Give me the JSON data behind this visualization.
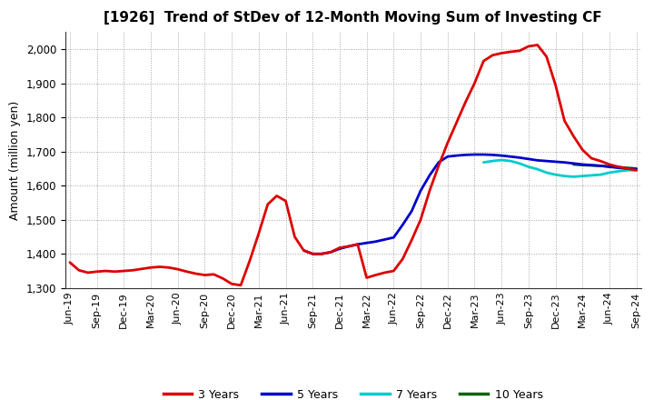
{
  "title": "[1926]  Trend of StDev of 12-Month Moving Sum of Investing CF",
  "ylabel": "Amount (million yen)",
  "ylim": [
    1300,
    2050
  ],
  "yticks": [
    1300,
    1400,
    1500,
    1600,
    1700,
    1800,
    1900,
    2000
  ],
  "background_color": "#ffffff",
  "plot_bg_color": "#ffffff",
  "grid_color": "#999999",
  "series": {
    "3 Years": {
      "color": "#dd0000",
      "x": [
        0,
        1,
        2,
        3,
        4,
        5,
        6,
        7,
        8,
        9,
        10,
        11,
        12,
        13,
        14,
        15,
        16,
        17,
        18,
        19,
        20,
        21,
        22,
        23,
        24,
        25,
        26,
        27,
        28,
        29,
        30,
        31,
        32,
        33,
        34,
        35,
        36,
        37,
        38,
        39,
        40,
        41,
        42,
        43,
        44,
        45,
        46,
        47,
        48,
        49,
        50,
        51,
        52,
        53,
        54,
        55,
        56,
        57,
        58,
        59,
        60,
        61,
        62,
        63
      ],
      "y": [
        1375,
        1352,
        1345,
        1348,
        1350,
        1348,
        1350,
        1352,
        1356,
        1360,
        1362,
        1360,
        1355,
        1348,
        1342,
        1338,
        1340,
        1328,
        1312,
        1308,
        1380,
        1460,
        1545,
        1570,
        1555,
        1450,
        1410,
        1400,
        1400,
        1405,
        1418,
        1422,
        1428,
        1330,
        1338,
        1345,
        1350,
        1385,
        1440,
        1500,
        1585,
        1658,
        1725,
        1785,
        1845,
        1900,
        1965,
        1982,
        1988,
        1992,
        1995,
        2008,
        2012,
        1978,
        1895,
        1790,
        1745,
        1705,
        1680,
        1672,
        1662,
        1655,
        1650,
        1645
      ]
    },
    "5 Years": {
      "color": "#0000cc",
      "x": [
        26,
        27,
        28,
        29,
        30,
        31,
        32,
        33,
        34,
        35,
        36,
        37,
        38,
        39,
        40,
        41,
        42,
        43,
        44,
        45,
        46,
        47,
        48,
        49,
        50,
        51,
        52,
        53,
        54,
        55,
        56,
        57,
        58,
        59,
        60,
        61,
        62,
        63
      ],
      "y": [
        1410,
        1400,
        1400,
        1405,
        1415,
        1422,
        1428,
        1432,
        1436,
        1442,
        1448,
        1485,
        1525,
        1585,
        1630,
        1668,
        1685,
        1688,
        1690,
        1691,
        1691,
        1690,
        1688,
        1685,
        1682,
        1678,
        1674,
        1672,
        1670,
        1668,
        1665,
        1662,
        1660,
        1658,
        1655,
        1652,
        1650,
        1648
      ]
    },
    "7 Years": {
      "color": "#00cccc",
      "x": [
        46,
        47,
        48,
        49,
        50,
        51,
        52,
        53,
        54,
        55,
        56,
        57,
        58,
        59,
        60,
        61,
        62,
        63
      ],
      "y": [
        1668,
        1672,
        1675,
        1672,
        1665,
        1655,
        1648,
        1638,
        1632,
        1628,
        1626,
        1628,
        1630,
        1632,
        1638,
        1642,
        1645,
        1645
      ]
    },
    "10 Years": {
      "color": "#006600",
      "x": [
        56,
        57,
        58,
        59,
        60,
        61,
        62,
        63
      ],
      "y": [
        1662,
        1660,
        1659,
        1658,
        1656,
        1654,
        1652,
        1650
      ]
    }
  },
  "xtick_labels": [
    "Jun-19",
    "Sep-19",
    "Dec-19",
    "Mar-20",
    "Jun-20",
    "Sep-20",
    "Dec-20",
    "Mar-21",
    "Jun-21",
    "Sep-21",
    "Dec-21",
    "Mar-22",
    "Jun-22",
    "Sep-22",
    "Dec-22",
    "Mar-23",
    "Jun-23",
    "Sep-23",
    "Dec-23",
    "Mar-24",
    "Jun-24",
    "Sep-24"
  ],
  "xtick_positions": [
    0,
    3,
    6,
    9,
    12,
    15,
    18,
    21,
    24,
    27,
    30,
    33,
    36,
    39,
    42,
    45,
    48,
    51,
    54,
    57,
    60,
    63
  ],
  "legend_labels": [
    "3 Years",
    "5 Years",
    "7 Years",
    "10 Years"
  ],
  "legend_colors": [
    "#dd0000",
    "#0000cc",
    "#00cccc",
    "#006600"
  ]
}
